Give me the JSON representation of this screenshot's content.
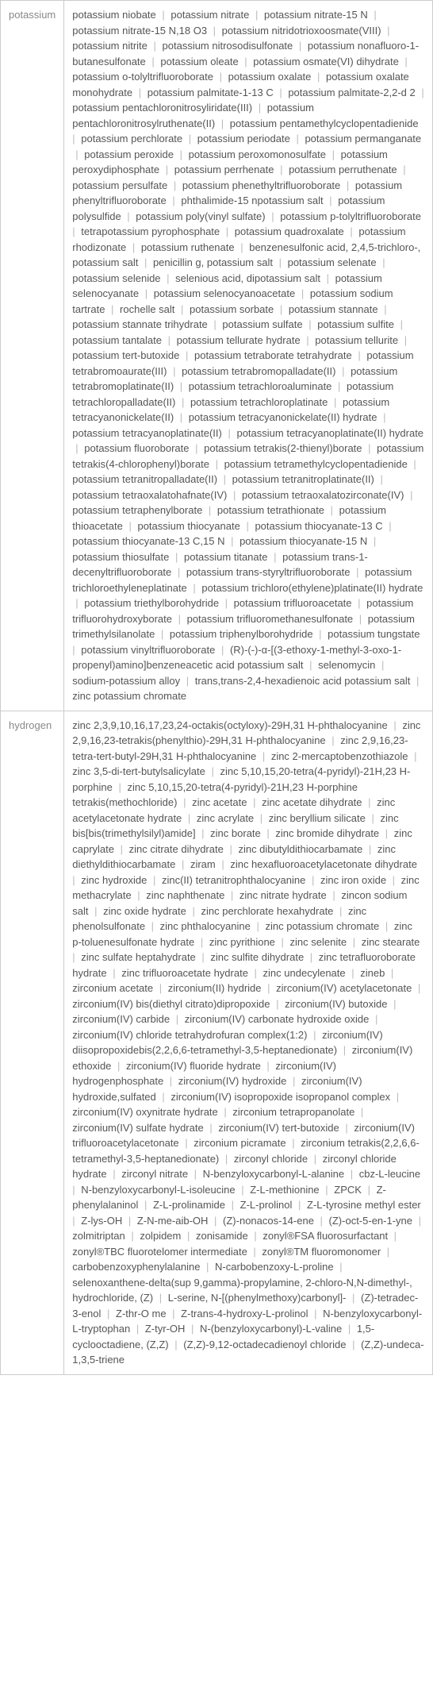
{
  "rows": [
    {
      "label": "potassium",
      "items": [
        "potassium niobate",
        "potassium nitrate",
        "potassium nitrate-15 N",
        "potassium nitrate-15 N,18 O3",
        "potassium nitridotrioxoosmate(VIII)",
        "potassium nitrite",
        "potassium nitrosodisulfonate",
        "potassium nonafluoro-1-butanesulfonate",
        "potassium oleate",
        "potassium osmate(VI) dihydrate",
        "potassium o-tolyltrifluoroborate",
        "potassium oxalate",
        "potassium oxalate monohydrate",
        "potassium palmitate-1-13 C",
        "potassium palmitate-2,2-d 2",
        "potassium pentachloronitrosyliridate(III)",
        "potassium pentachloronitrosylruthenate(II)",
        "potassium pentamethylcyclopentadienide",
        "potassium perchlorate",
        "potassium periodate",
        "potassium permanganate",
        "potassium peroxide",
        "potassium peroxomonosulfate",
        "potassium peroxydiphosphate",
        "potassium perrhenate",
        "potassium perruthenate",
        "potassium persulfate",
        "potassium phenethyltrifluoroborate",
        "potassium phenyltrifluoroborate",
        "phthalimide-15 npotassium salt",
        "potassium polysulfide",
        "potassium poly(vinyl sulfate)",
        "potassium p-tolyltrifluoroborate",
        "tetrapotassium pyrophosphate",
        "potassium quadroxalate",
        "potassium rhodizonate",
        "potassium ruthenate",
        "benzenesulfonic acid, 2,4,5-trichloro-, potassium salt",
        "penicillin g, potassium salt",
        "potassium selenate",
        "potassium selenide",
        "selenious acid, dipotassium salt",
        "potassium selenocyanate",
        "potassium selenocyanoacetate",
        "potassium sodium tartrate",
        "rochelle salt",
        "potassium sorbate",
        "potassium stannate",
        "potassium stannate trihydrate",
        "potassium sulfate",
        "potassium sulfite",
        "potassium tantalate",
        "potassium tellurate hydrate",
        "potassium tellurite",
        "potassium tert-butoxide",
        "potassium tetraborate tetrahydrate",
        "potassium tetrabromoaurate(III)",
        "potassium tetrabromopalladate(II)",
        "potassium tetrabromoplatinate(II)",
        "potassium tetrachloroaluminate",
        "potassium tetrachloropalladate(II)",
        "potassium tetrachloroplatinate",
        "potassium tetracyanonickelate(II)",
        "potassium tetracyanonickelate(II) hydrate",
        "potassium tetracyanoplatinate(II)",
        "potassium tetracyanoplatinate(II) hydrate",
        "potassium fluoroborate",
        "potassium tetrakis(2-thienyl)borate",
        "potassium tetrakis(4-chlorophenyl)borate",
        "potassium tetramethylcyclopentadienide",
        "potassium tetranitropalladate(II)",
        "potassium tetranitroplatinate(II)",
        "potassium tetraoxalatohafnate(IV)",
        "potassium tetraoxalatozirconate(IV)",
        "potassium tetraphenylborate",
        "potassium tetrathionate",
        "potassium thioacetate",
        "potassium thiocyanate",
        "potassium thiocyanate-13 C",
        "potassium thiocyanate-13 C,15 N",
        "potassium thiocyanate-15 N",
        "potassium thiosulfate",
        "potassium titanate",
        "potassium trans-1-decenyltrifluoroborate",
        "potassium trans-styryltrifluoroborate",
        "potassium trichloroethyleneplatinate",
        "potassium trichloro(ethylene)platinate(II) hydrate",
        "potassium triethylborohydride",
        "potassium trifluoroacetate",
        "potassium trifluorohydroxyborate",
        "potassium trifluoromethanesulfonate",
        "potassium trimethylsilanolate",
        "potassium triphenylborohydride",
        "potassium tungstate",
        "potassium vinyltrifluoroborate",
        "(R)-(-)-α-[(3-ethoxy-1-methyl-3-oxo-1-propenyl)amino]benzeneacetic acid potassium salt",
        "selenomycin",
        "sodium-potassium alloy",
        "trans,trans-2,4-hexadienoic acid potassium salt",
        "zinc potassium chromate"
      ]
    },
    {
      "label": "hydrogen",
      "items": [
        "zinc 2,3,9,10,16,17,23,24-octakis(octyloxy)-29H,31 H-phthalocyanine",
        "zinc 2,9,16,23-tetrakis(phenylthio)-29H,31 H-phthalocyanine",
        "zinc 2,9,16,23-tetra-tert-butyl-29H,31 H-phthalocyanine",
        "zinc 2-mercaptobenzothiazole",
        "zinc 3,5-di-tert-butylsalicylate",
        "zinc 5,10,15,20-tetra(4-pyridyl)-21H,23 H-porphine",
        "zinc 5,10,15,20-tetra(4-pyridyl)-21H,23 H-porphine tetrakis(methochloride)",
        "zinc acetate",
        "zinc acetate dihydrate",
        "zinc acetylacetonate hydrate",
        "zinc acrylate",
        "zinc beryllium silicate",
        "zinc bis[bis(trimethylsilyl)amide]",
        "zinc borate",
        "zinc bromide dihydrate",
        "zinc caprylate",
        "zinc citrate dihydrate",
        "zinc dibutyldithiocarbamate",
        "zinc diethyldithiocarbamate",
        "ziram",
        "zinc hexafluoroacetylacetonate dihydrate",
        "zinc hydroxide",
        "zinc(II) tetranitrophthalocyanine",
        "zinc iron oxide",
        "zinc methacrylate",
        "zinc naphthenate",
        "zinc nitrate hydrate",
        "zincon sodium salt",
        "zinc oxide hydrate",
        "zinc perchlorate hexahydrate",
        "zinc phenolsulfonate",
        "zinc phthalocyanine",
        "zinc potassium chromate",
        "zinc p-toluenesulfonate hydrate",
        "zinc pyrithione",
        "zinc selenite",
        "zinc stearate",
        "zinc sulfate heptahydrate",
        "zinc sulfite dihydrate",
        "zinc tetrafluoroborate hydrate",
        "zinc trifluoroacetate hydrate",
        "zinc undecylenate",
        "zineb",
        "zirconium acetate",
        "zirconium(II) hydride",
        "zirconium(IV) acetylacetonate",
        "zirconium(IV) bis(diethyl citrato)dipropoxide",
        "zirconium(IV) butoxide",
        "zirconium(IV) carbide",
        "zirconium(IV) carbonate hydroxide oxide",
        "zirconium(IV) chloride tetrahydrofuran complex(1:2)",
        "zirconium(IV) diisopropoxidebis(2,2,6,6-tetramethyl-3,5-heptanedionate)",
        "zirconium(IV) ethoxide",
        "zirconium(IV) fluoride hydrate",
        "zirconium(IV) hydrogenphosphate",
        "zirconium(IV) hydroxide",
        "zirconium(IV) hydroxide,sulfated",
        "zirconium(IV) isopropoxide isopropanol complex",
        "zirconium(IV) oxynitrate hydrate",
        "zirconium tetrapropanolate",
        "zirconium(IV) sulfate hydrate",
        "zirconium(IV) tert-butoxide",
        "zirconium(IV) trifluoroacetylacetonate",
        "zirconium picramate",
        "zirconium tetrakis(2,2,6,6-tetramethyl-3,5-heptanedionate)",
        "zirconyl chloride",
        "zirconyl chloride hydrate",
        "zirconyl nitrate",
        "N-benzyloxycarbonyl-L-alanine",
        "cbz-L-leucine",
        "N-benzyloxycarbonyl-L-isoleucine",
        "Z-L-methionine",
        "ZPCK",
        "Z-phenylalaninol",
        "Z-L-prolinamide",
        "Z-L-prolinol",
        "Z-L-tyrosine methyl ester",
        "Z-lys-OH",
        "Z-N-me-aib-OH",
        "(Z)-nonacos-14-ene",
        "(Z)-oct-5-en-1-yne",
        "zolmitriptan",
        "zolpidem",
        "zonisamide",
        "zonyl®FSA fluorosurfactant",
        "zonyl®TBC fluorotelomer intermediate",
        "zonyl®TM fluoromonomer",
        "carbobenzoxyphenylalanine",
        "N-carbobenzoxy-L-proline",
        "selenoxanthene-delta(sup 9,gamma)-propylamine, 2-chloro-N,N-dimethyl-, hydrochloride, (Z)",
        "L-serine, N-[(phenylmethoxy)carbonyl]-",
        "(Z)-tetradec-3-enol",
        "Z-thr-O me",
        "Z-trans-4-hydroxy-L-prolinol",
        "N-benzyloxycarbonyl-L-tryptophan",
        "Z-tyr-OH",
        "N-(benzyloxycarbonyl)-L-valine",
        "1,5-cyclooctadiene, (Z,Z)",
        "(Z,Z)-9,12-octadecadienoyl chloride",
        "(Z,Z)-undeca-1,3,5-triene"
      ]
    }
  ]
}
